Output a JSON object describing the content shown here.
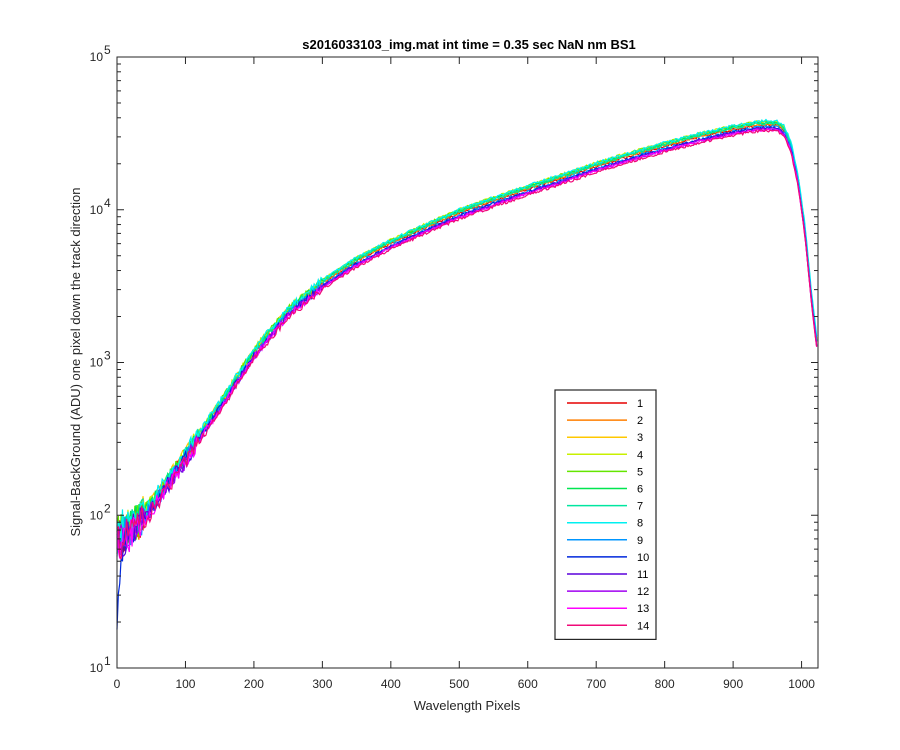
{
  "chart_data": {
    "type": "line",
    "title": "s2016033103_img.mat int time = 0.35 sec  NaN nm BS1",
    "xlabel": "Wavelength Pixels",
    "ylabel": "Signal-BackGround (ADU) one pixel down the track direction",
    "xlim": [
      0,
      1024
    ],
    "ylim": [
      10,
      100000
    ],
    "yscale": "log",
    "grid": false,
    "legend_position": "lower-right",
    "x_ticks": [
      0,
      100,
      200,
      300,
      400,
      500,
      600,
      700,
      800,
      900,
      1000
    ],
    "x_tick_labels": [
      "0",
      "100",
      "200",
      "300",
      "400",
      "500",
      "600",
      "700",
      "800",
      "900",
      "1000"
    ],
    "y_ticks": [
      10,
      100,
      1000,
      10000,
      100000
    ],
    "y_tick_bases": [
      "10",
      "10",
      "10",
      "10",
      "10"
    ],
    "y_tick_exponents": [
      "1",
      "2",
      "3",
      "4",
      "5"
    ],
    "x_profile": [
      0,
      10,
      20,
      30,
      40,
      50,
      60,
      80,
      100,
      120,
      150,
      180,
      200,
      250,
      300,
      350,
      400,
      450,
      500,
      550,
      600,
      650,
      700,
      750,
      800,
      850,
      900,
      930,
      950,
      965,
      975,
      985,
      995,
      1005,
      1015,
      1023
    ],
    "series": [
      {
        "name": "1",
        "color": "#e60000",
        "values": [
          70,
          75,
          82,
          88,
          100,
          115,
          132,
          180,
          240,
          330,
          520,
          840,
          1150,
          2150,
          3300,
          4600,
          6000,
          7600,
          9500,
          11400,
          13600,
          16100,
          19200,
          22500,
          26000,
          29800,
          33500,
          35300,
          35900,
          35500,
          32800,
          25500,
          15500,
          7300,
          2500,
          1250
        ]
      },
      {
        "name": "2",
        "color": "#ff7f00",
        "values": [
          71,
          76,
          83,
          89,
          101,
          116,
          134,
          182,
          243,
          334,
          527,
          850,
          1165,
          2175,
          3340,
          4655,
          6075,
          7700,
          9620,
          11550,
          13780,
          16300,
          19450,
          22800,
          26350,
          30200,
          33950,
          35800,
          36400,
          36000,
          33250,
          25850,
          15700,
          7400,
          2530,
          1265
        ]
      },
      {
        "name": "3",
        "color": "#ffc800",
        "values": [
          73,
          78,
          85,
          91,
          104,
          119,
          137,
          187,
          250,
          343,
          541,
          874,
          1197,
          2235,
          3430,
          4780,
          6240,
          7905,
          9880,
          11860,
          14150,
          16750,
          19970,
          23400,
          27050,
          31000,
          34850,
          36750,
          37350,
          36950,
          34150,
          26550,
          16150,
          7600,
          2600,
          1300
        ]
      },
      {
        "name": "4",
        "color": "#c8f000",
        "values": [
          74,
          79,
          86,
          93,
          106,
          121,
          140,
          190,
          254,
          349,
          550,
          888,
          1216,
          2270,
          3490,
          4860,
          6340,
          8035,
          10040,
          12050,
          14380,
          17020,
          20300,
          23790,
          27500,
          31500,
          35400,
          37350,
          37950,
          37550,
          34700,
          26950,
          16400,
          7720,
          2640,
          1320
        ]
      },
      {
        "name": "5",
        "color": "#64e600",
        "values": [
          74,
          79,
          86,
          92,
          105,
          120,
          139,
          189,
          252,
          346,
          546,
          882,
          1208,
          2255,
          3465,
          4830,
          6300,
          7980,
          9975,
          11970,
          14280,
          16900,
          20160,
          23620,
          27300,
          31300,
          35170,
          37100,
          37700,
          37300,
          34450,
          26780,
          16280,
          7660,
          2620,
          1310
        ]
      },
      {
        "name": "6",
        "color": "#00e650",
        "values": [
          73,
          78,
          85,
          91,
          103,
          118,
          136,
          186,
          248,
          341,
          537,
          868,
          1188,
          2220,
          3410,
          4750,
          6200,
          7850,
          9810,
          11780,
          14050,
          16630,
          19830,
          23240,
          26860,
          30790,
          34600,
          36500,
          37100,
          36700,
          33900,
          26350,
          16020,
          7540,
          2580,
          1290
        ]
      },
      {
        "name": "7",
        "color": "#00e6a0",
        "values": [
          72,
          77,
          84,
          90,
          102,
          117,
          135,
          184,
          246,
          338,
          532,
          860,
          1177,
          2200,
          3380,
          4710,
          6145,
          7780,
          9725,
          11670,
          13925,
          16480,
          19650,
          23030,
          26620,
          30500,
          34300,
          36200,
          36800,
          36400,
          33650,
          26150,
          15900,
          7480,
          2560,
          1280
        ]
      },
      {
        "name": "8",
        "color": "#00f0f0",
        "values": [
          95,
          80,
          87,
          93,
          106,
          121,
          140,
          190,
          254,
          349,
          550,
          888,
          1216,
          2270,
          3490,
          4860,
          6340,
          8035,
          10040,
          12050,
          14380,
          17020,
          20300,
          23790,
          27500,
          31500,
          35400,
          37600,
          38300,
          38000,
          35300,
          27600,
          16900,
          8000,
          2750,
          1380
        ]
      },
      {
        "name": "9",
        "color": "#0096ff",
        "values": [
          68,
          73,
          80,
          86,
          97,
          111,
          128,
          175,
          233,
          320,
          505,
          815,
          1115,
          2085,
          3200,
          4460,
          5820,
          7370,
          9215,
          11060,
          13190,
          15620,
          18620,
          21830,
          25220,
          28900,
          32500,
          34500,
          35200,
          34900,
          32300,
          25200,
          15400,
          7300,
          2500,
          1250
        ]
      },
      {
        "name": "10",
        "color": "#0028dc",
        "values": [
          20,
          72,
          79,
          85,
          96,
          110,
          127,
          173,
          231,
          317,
          500,
          806,
          1104,
          2064,
          3168,
          4416,
          5760,
          7296,
          9120,
          10944,
          13056,
          15456,
          18432,
          21600,
          24960,
          28600,
          32160,
          33900,
          34460,
          34100,
          31500,
          24500,
          14900,
          7000,
          2400,
          1200
        ]
      },
      {
        "name": "11",
        "color": "#5a00dc",
        "values": [
          66,
          71,
          78,
          83,
          95,
          109,
          125,
          171,
          228,
          313,
          494,
          797,
          1092,
          2040,
          3135,
          4370,
          5700,
          7220,
          9025,
          10830,
          12920,
          15295,
          18240,
          21375,
          24700,
          28300,
          31800,
          33550,
          34100,
          33700,
          31150,
          24200,
          14700,
          6930,
          2375,
          1190
        ]
      },
      {
        "name": "12",
        "color": "#a000f0",
        "values": [
          66,
          71,
          78,
          83,
          95,
          108,
          125,
          170,
          227,
          312,
          492,
          794,
          1087,
          2032,
          3120,
          4350,
          5670,
          7180,
          8980,
          10780,
          12860,
          15220,
          18150,
          21270,
          24580,
          28160,
          31650,
          33400,
          33950,
          33550,
          31000,
          24100,
          14650,
          6900,
          2360,
          1180
        ]
      },
      {
        "name": "13",
        "color": "#ff00ff",
        "values": [
          65,
          70,
          77,
          82,
          94,
          107,
          124,
          168,
          224,
          308,
          486,
          785,
          1075,
          2010,
          3085,
          4300,
          5610,
          7105,
          8880,
          10660,
          12720,
          15050,
          17950,
          21040,
          24310,
          27860,
          31300,
          33000,
          33550,
          33150,
          30650,
          23800,
          14480,
          6820,
          2340,
          1170
        ]
      },
      {
        "name": "14",
        "color": "#f00a78",
        "values": [
          64,
          69,
          76,
          81,
          92,
          105,
          121,
          165,
          220,
          302,
          477,
          770,
          1055,
          1972,
          3027,
          4220,
          5505,
          6970,
          8710,
          10460,
          12480,
          14770,
          17610,
          20640,
          23850,
          27340,
          30700,
          32400,
          32950,
          32550,
          30100,
          23400,
          14230,
          6700,
          2300,
          1150
        ]
      }
    ]
  }
}
